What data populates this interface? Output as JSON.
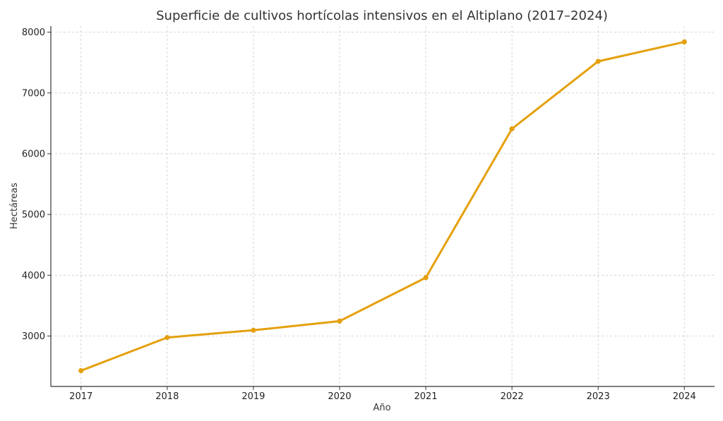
{
  "chart_data": {
    "type": "line",
    "title": "Superficie de cultivos hortícolas intensivos en el Altiplano (2017–2024)",
    "xlabel": "Año",
    "ylabel": "Hectáreas",
    "x": [
      2017,
      2018,
      2019,
      2020,
      2021,
      2022,
      2023,
      2024
    ],
    "x_tick_labels": [
      "2017",
      "2018",
      "2019",
      "2020",
      "2021",
      "2022",
      "2023",
      "2024"
    ],
    "y_ticks": [
      3000,
      4000,
      5000,
      6000,
      7000,
      8000
    ],
    "y_tick_labels": [
      "3000",
      "4000",
      "5000",
      "6000",
      "7000",
      "8000"
    ],
    "ylim": [
      2170,
      8100
    ],
    "xlim": [
      2016.65,
      2024.35
    ],
    "grid": true,
    "series": [
      {
        "values": [
          2430,
          2975,
          3095,
          3245,
          3960,
          6410,
          7520,
          7840
        ],
        "color": "#E5A00D"
      }
    ]
  }
}
